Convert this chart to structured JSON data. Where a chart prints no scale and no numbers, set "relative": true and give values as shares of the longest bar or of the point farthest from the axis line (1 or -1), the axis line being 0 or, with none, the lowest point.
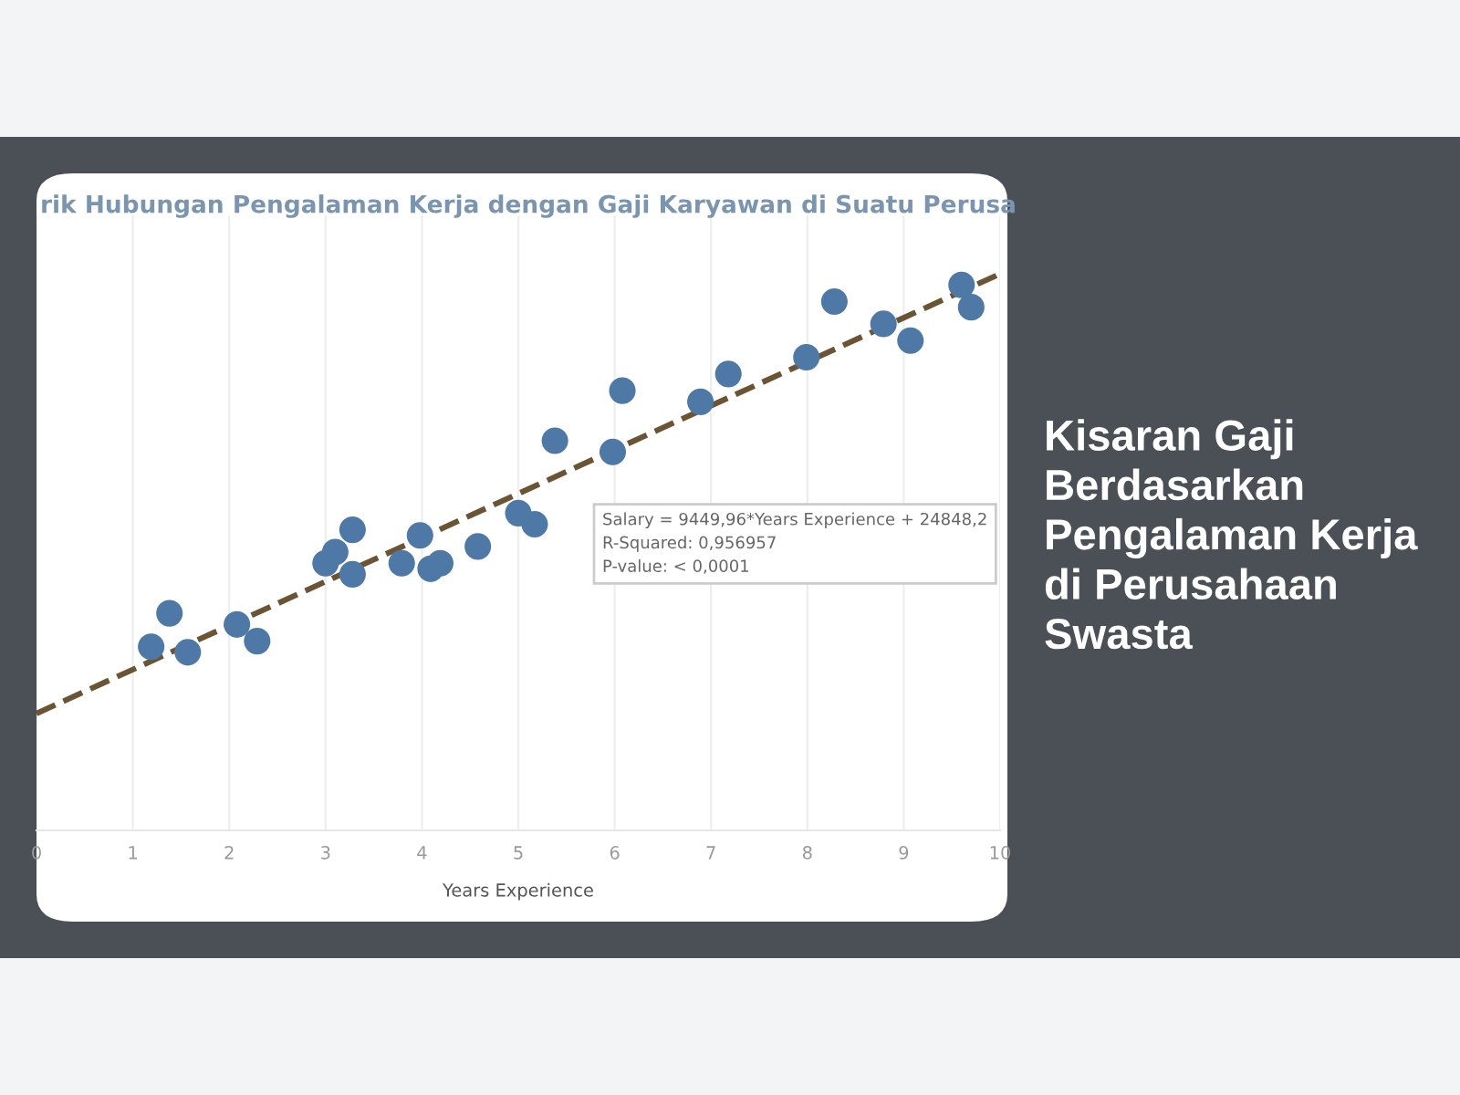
{
  "chart_data": {
    "type": "scatter",
    "title": "rik Hubungan Pengalaman Kerja dengan Gaji Karyawan di Suatu Perusa",
    "subtitle": "Kisaran Gaji Berdasarkan Pengalaman Kerja di Perusahaan Swasta",
    "xlabel": "Years Experience",
    "relative": true,
    "xlim": [
      0,
      10
    ],
    "xticks": [
      0,
      1,
      2,
      3,
      4,
      5,
      6,
      7,
      8,
      9,
      10
    ],
    "grid": "x",
    "series": [
      {
        "color": "#4e79a7",
        "marker": "circle",
        "x": [
          1.19,
          1.38,
          1.57,
          2.08,
          2.29,
          3.0,
          3.1,
          3.28,
          3.28,
          3.79,
          3.98,
          4.09,
          4.19,
          4.58,
          5.0,
          5.17,
          5.38,
          5.98,
          6.08,
          6.89,
          7.18,
          7.99,
          8.28,
          8.79,
          9.07,
          9.6,
          9.7
        ],
        "values": [
          0.33,
          0.39,
          0.32,
          0.37,
          0.34,
          0.48,
          0.5,
          0.54,
          0.46,
          0.48,
          0.53,
          0.47,
          0.48,
          0.51,
          0.57,
          0.55,
          0.7,
          0.68,
          0.79,
          0.77,
          0.82,
          0.85,
          0.95,
          0.91,
          0.88,
          0.98,
          0.94
        ]
      },
      {
        "type": "line",
        "color": "#6b5434",
        "line_style": "dashed",
        "x": [
          0,
          10
        ],
        "values": [
          0.21,
          1
        ]
      }
    ],
    "annotations": [
      "Salary = 9449,96*Years Experience + 24848,2",
      "R-Squared: 0,956957",
      "P-value: < 0,0001"
    ]
  }
}
